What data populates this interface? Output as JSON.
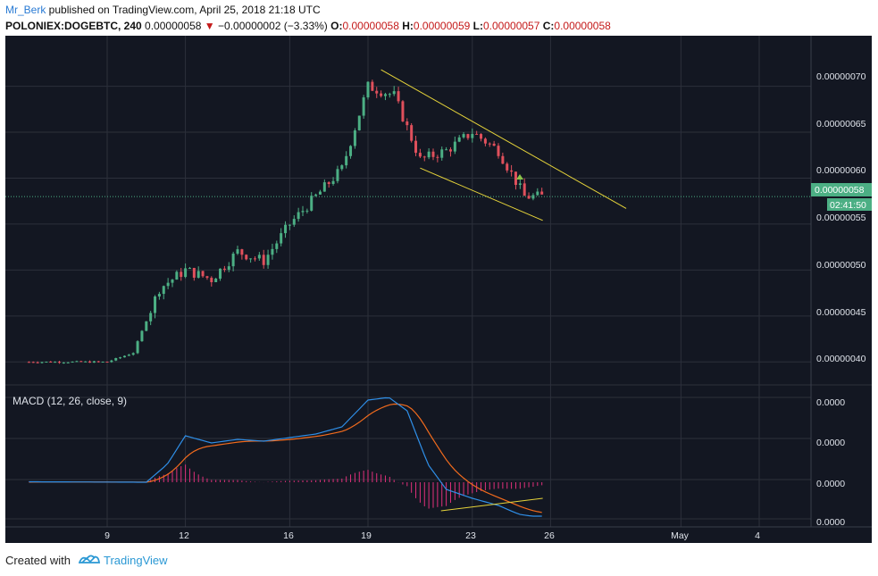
{
  "header": {
    "author": "Mr_Berk",
    "published_text": " published on TradingView.com, April 25, 2018 21:18 UTC",
    "symbol": "POLONIEX:DOGEBTC, 240",
    "last": "0.00000058",
    "change_arrow": "▼",
    "change": "−0.00000002 (−3.33%)",
    "o_label": "O:",
    "o_value": "0.00000058",
    "h_label": "H:",
    "h_value": "0.00000059",
    "l_label": "L:",
    "l_value": "0.00000057",
    "c_label": "C:",
    "c_value": "0.00000058"
  },
  "price_axis": {
    "labels": [
      "0.00000070",
      "0.00000065",
      "0.00000060",
      "0.00000055",
      "0.00000050",
      "0.00000045",
      "0.00000040"
    ],
    "current_price_badge": "0.00000058",
    "countdown_badge": "02:41:50"
  },
  "macd": {
    "title": "MACD (12, 26, close, 9)",
    "axis_labels": [
      "0.0000",
      "0.0000",
      "0.0000",
      "0.0000"
    ]
  },
  "time_axis": {
    "labels": [
      "9",
      "12",
      "16",
      "19",
      "23",
      "26",
      "May",
      "4"
    ]
  },
  "footer": {
    "created_with": "Created with",
    "brand": "TradingView"
  },
  "colors": {
    "background": "#131722",
    "grid": "#2c303b",
    "up_candle": "#4caf84",
    "down_candle": "#e0505c",
    "trendline": "#e6d43a",
    "macd_line": "#2f8fe8",
    "signal_line": "#f26b1d",
    "histogram": "#e0307c",
    "price_line": "#4caf84"
  },
  "chart_data": [
    {
      "type": "candlestick",
      "title": "POLONIEX:DOGEBTC, 240",
      "x_range": [
        "Apr 6",
        "May 5"
      ],
      "ylim": [
        3.75e-07,
        7.55e-07
      ],
      "x_ticks": [
        "9",
        "12",
        "16",
        "19",
        "23",
        "26",
        "May",
        "4"
      ],
      "y_ticks": [
        4e-07,
        4.5e-07,
        5e-07,
        5.5e-07,
        6e-07,
        6.5e-07,
        7e-07
      ],
      "last_price": 5.8e-07,
      "close_series_by_day": [
        {
          "day": "Apr 6",
          "close": 4e-07
        },
        {
          "day": "Apr 9",
          "close": 4e-07
        },
        {
          "day": "Apr 10",
          "close": 4.1e-07
        },
        {
          "day": "Apr 11",
          "close": 4.8e-07
        },
        {
          "day": "Apr 12",
          "close": 5e-07
        },
        {
          "day": "Apr 13",
          "close": 4.9e-07
        },
        {
          "day": "Apr 14",
          "close": 5.2e-07
        },
        {
          "day": "Apr 15",
          "close": 5.1e-07
        },
        {
          "day": "Apr 16",
          "close": 5.5e-07
        },
        {
          "day": "Apr 17",
          "close": 5.8e-07
        },
        {
          "day": "Apr 18",
          "close": 6.1e-07
        },
        {
          "day": "Apr 19",
          "close": 7e-07
        },
        {
          "day": "Apr 20",
          "close": 6.9e-07
        },
        {
          "day": "Apr 21",
          "close": 6.2e-07
        },
        {
          "day": "Apr 22",
          "close": 6.3e-07
        },
        {
          "day": "Apr 23",
          "close": 6.5e-07
        },
        {
          "day": "Apr 24",
          "close": 6.3e-07
        },
        {
          "day": "Apr 25",
          "close": 5.8e-07
        }
      ],
      "annotations": [
        {
          "type": "trendline",
          "label": "",
          "from": {
            "day": "Apr 19.5",
            "price": 7.18e-07
          },
          "to": {
            "day": "Apr 28.9",
            "price": 5.67e-07
          }
        },
        {
          "type": "trendline",
          "label": "",
          "from": {
            "day": "Apr 21.0",
            "price": 6.11e-07
          },
          "to": {
            "day": "Apr 25.7",
            "price": 5.54e-07
          }
        }
      ]
    },
    {
      "type": "line",
      "title": "MACD (12, 26, close, 9)",
      "series": [
        {
          "name": "MACD",
          "values_shape": "flat near 0 until Apr 11, rises to local high Apr 12, plateau to Apr 18, peak Apr 19-20, falls below zero from Apr 21 to Apr 25 low"
        },
        {
          "name": "Signal",
          "values_shape": "lagging smoothed MACD, peak Apr 20, declining to Apr 25"
        },
        {
          "name": "Histogram",
          "values_shape": "positive Apr 11-20, negative Apr 21-25 contracting"
        }
      ],
      "annotations": [
        {
          "type": "trendline",
          "label": "",
          "from": {
            "day": "Apr 21.8"
          },
          "to": {
            "day": "Apr 25.7"
          }
        }
      ]
    }
  ]
}
